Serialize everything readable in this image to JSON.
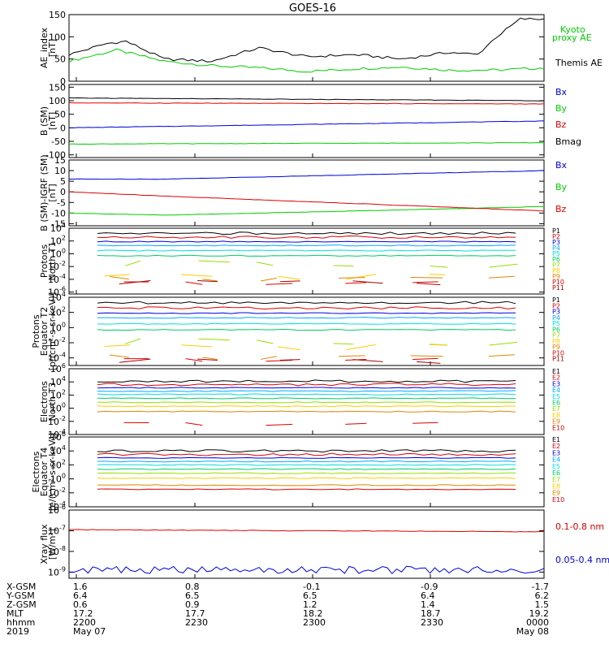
{
  "title": "GOES-16",
  "colors": {
    "black": "#000000",
    "red": "#dd0000",
    "green": "#00cc00",
    "blue": "#0000dd"
  },
  "chart_data": [
    {
      "type": "line",
      "id": "ae",
      "ylabel": [
        "AE_index",
        "[nT]"
      ],
      "ylim": [
        0,
        150
      ],
      "ticks": [
        "0",
        "50",
        "100",
        "150"
      ],
      "series": [
        {
          "name": "Kyoto proxy AE",
          "color": "#00cc00",
          "legend_lines": [
            "Kyoto",
            "proxy AE"
          ],
          "x": [
            0,
            10,
            20,
            30,
            40,
            50,
            60,
            70,
            80,
            90,
            100
          ],
          "y": [
            45,
            70,
            45,
            35,
            30,
            22,
            28,
            32,
            25,
            25,
            30
          ]
        },
        {
          "name": "Themis AE",
          "color": "#000000",
          "legend_lines": [
            "Themis AE"
          ],
          "x": [
            0,
            8,
            12,
            20,
            30,
            40,
            50,
            60,
            70,
            80,
            86,
            90,
            95,
            100
          ],
          "y": [
            60,
            85,
            90,
            50,
            45,
            75,
            55,
            60,
            50,
            65,
            60,
            100,
            140,
            140
          ]
        }
      ]
    },
    {
      "type": "line",
      "id": "bsm",
      "ylabel": [
        "B (SM)",
        "[nT]"
      ],
      "ylim": [
        -110,
        160
      ],
      "ticks": [
        "-100",
        "-50",
        "0",
        "50",
        "100",
        "150"
      ],
      "series": [
        {
          "name": "Bx",
          "color": "#0000dd",
          "x": [
            0,
            100
          ],
          "y": [
            0,
            25
          ]
        },
        {
          "name": "By",
          "color": "#00cc00",
          "x": [
            0,
            100
          ],
          "y": [
            -60,
            -55
          ]
        },
        {
          "name": "Bz",
          "color": "#dd0000",
          "x": [
            0,
            100
          ],
          "y": [
            92,
            88
          ]
        },
        {
          "name": "Bmag",
          "color": "#000000",
          "x": [
            0,
            100
          ],
          "y": [
            110,
            100
          ]
        }
      ]
    },
    {
      "type": "line",
      "id": "bigrf",
      "ylabel": [
        "B (SM)-IGRF (SM)",
        "[nT]"
      ],
      "ylim": [
        -16,
        15
      ],
      "ticks": [
        "-15",
        "-10",
        "-5",
        "0",
        "5",
        "10",
        "15"
      ],
      "series": [
        {
          "name": "Bx",
          "color": "#0000dd",
          "x": [
            0,
            20,
            100
          ],
          "y": [
            6,
            6,
            10
          ]
        },
        {
          "name": "By",
          "color": "#00cc00",
          "x": [
            0,
            20,
            100
          ],
          "y": [
            -10,
            -11,
            -7
          ]
        },
        {
          "name": "Bz",
          "color": "#dd0000",
          "x": [
            0,
            20,
            100
          ],
          "y": [
            0,
            -2,
            -9
          ]
        }
      ]
    },
    {
      "type": "line",
      "id": "protn",
      "ylabel": [
        "Protons",
        "North T1"
      ],
      "log": true,
      "ylim_exp": [
        -6.3,
        4
      ],
      "ticks_exp": [
        4,
        2,
        0,
        -2,
        -4,
        -6
      ],
      "channels": [
        "P1",
        "P2",
        "P3",
        "P4",
        "P5",
        "P6",
        "P7",
        "P8",
        "P9",
        "P10",
        "P11"
      ],
      "levels_exp": [
        3.2,
        2.6,
        1.9,
        1.3,
        0.5,
        -0.3,
        -1.6,
        -3.5,
        -3.8,
        -4.4,
        -4.6
      ]
    },
    {
      "type": "line",
      "id": "prote",
      "ylabel": [
        "Protons",
        "Equator T2",
        "[p/(cm²-s-sr-keV)]"
      ],
      "log": true,
      "ylim_exp": [
        -5,
        4
      ],
      "ticks_exp": [
        4,
        2,
        0,
        -2,
        -4
      ],
      "channels": [
        "P1",
        "P2",
        "P3",
        "P4",
        "P5",
        "P6",
        "P7",
        "P8",
        "P9",
        "P10",
        "P11"
      ],
      "levels_exp": [
        3.3,
        2.6,
        1.9,
        1.3,
        0.5,
        -0.3,
        -1.9,
        -2.5,
        -3.8,
        -4.1,
        -4.5
      ]
    },
    {
      "type": "line",
      "id": "elecn",
      "ylabel": [
        "Electrons",
        "North T3"
      ],
      "log": true,
      "ylim_exp": [
        -4,
        6
      ],
      "ticks_exp": [
        6,
        4,
        2,
        0,
        -2,
        -4
      ],
      "channels": [
        "E1",
        "E2",
        "E3",
        "E4",
        "E5",
        "E6",
        "E7",
        "E8",
        "E9",
        "E10"
      ],
      "levels_exp": [
        4.1,
        3.6,
        3.1,
        2.6,
        2.1,
        1.5,
        0.9,
        0.3,
        -0.5,
        -2.2
      ]
    },
    {
      "type": "line",
      "id": "elece",
      "ylabel": [
        "Electrons",
        "Equator T4",
        "[e/(cm²-s-sr-keV)]"
      ],
      "log": true,
      "ylim_exp": [
        -4,
        6
      ],
      "ticks_exp": [
        6,
        4,
        2,
        0,
        -2,
        -4
      ],
      "channels": [
        "E1",
        "E2",
        "E3",
        "E4",
        "E5",
        "E6",
        "E7",
        "E8",
        "E9",
        "E10"
      ],
      "levels_exp": [
        4.0,
        3.5,
        3.0,
        2.5,
        2.0,
        1.4,
        0.8,
        0.1,
        -0.9,
        -1.5
      ]
    },
    {
      "type": "line",
      "id": "xray",
      "ylabel": [
        "Xray flux",
        "[W/m²]"
      ],
      "log": true,
      "ylim_exp": [
        -9.3,
        -6
      ],
      "ticks_exp": [
        -6,
        -7,
        -8,
        -9
      ],
      "series": [
        {
          "name": "0.1-0.8 nm",
          "color": "#dd0000",
          "x": [
            0,
            100
          ],
          "y_exp": [
            -6.95,
            -7.05
          ]
        },
        {
          "name": "0.05-0.4 nm",
          "color": "#0000dd",
          "x": [
            0,
            100
          ],
          "y_exp": [
            -8.9,
            -8.9
          ]
        }
      ]
    }
  ],
  "channel_colors": [
    "#000000",
    "#dd0000",
    "#0000dd",
    "#00aaff",
    "#00dddd",
    "#00cc66",
    "#99dd00",
    "#ffcc00",
    "#dd8800",
    "#dd0000",
    "#aa0000"
  ],
  "ephemeris": {
    "labels": [
      "X-GSM",
      "Y-GSM",
      "Z-GSM",
      "MLT",
      "hhmm",
      "2019"
    ],
    "columns": [
      [
        "1.6",
        "6.4",
        "0.6",
        "17.2",
        "2200",
        "May 07"
      ],
      [
        "0.8",
        "6.5",
        "0.9",
        "17.7",
        "2230",
        ""
      ],
      [
        "-0.1",
        "6.5",
        "1.2",
        "18.2",
        "2300",
        ""
      ],
      [
        "-0.9",
        "6.4",
        "1.4",
        "18.7",
        "2330",
        ""
      ],
      [
        "-1.7",
        "6.2",
        "1.5",
        "19.2",
        "0000",
        "May 08"
      ]
    ]
  }
}
